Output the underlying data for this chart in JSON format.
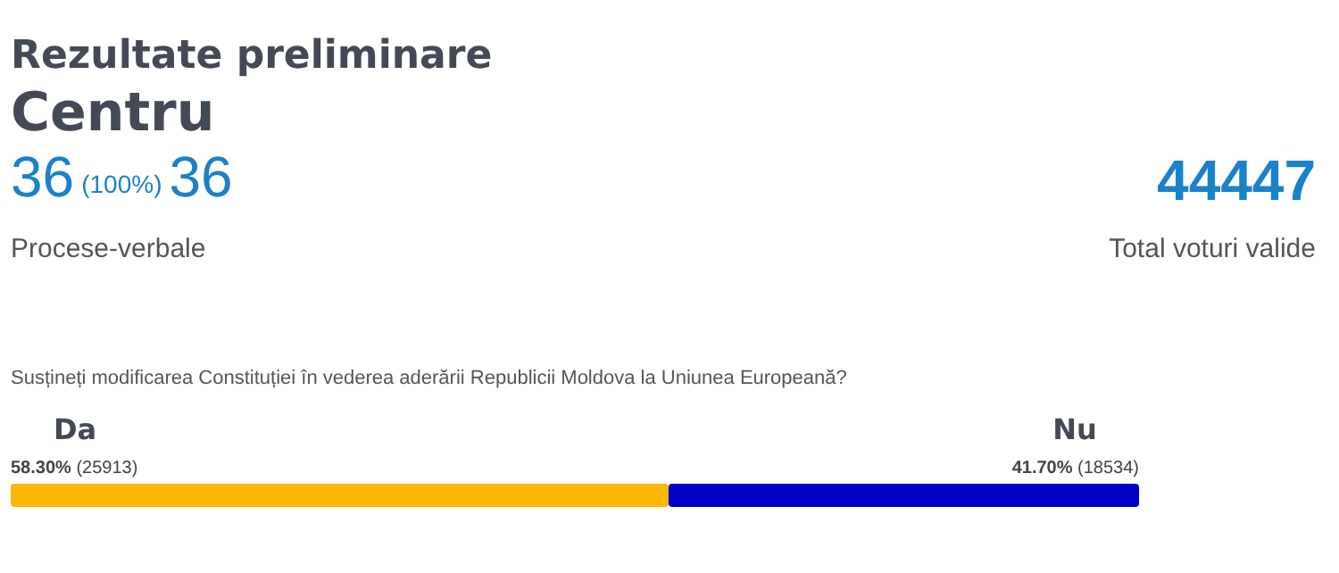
{
  "chart_data": {
    "type": "bar",
    "orientation": "horizontal",
    "stacked": true,
    "title": "Rezultate preliminare",
    "subtitle": "Centru",
    "annotations": [
      "36",
      "(100%)",
      "36",
      "Procese-verbale",
      "44447",
      "Total voturi valide",
      "Susțineți modificarea Constituției în vederea aderării Republicii Moldova la Uniunea Europeană?"
    ],
    "categories": [
      null
    ],
    "series": [
      {
        "name": "Da",
        "color": "#fbb800",
        "values": [
          58.3
        ],
        "value_labels": [
          "58.30% (25913)"
        ]
      },
      {
        "name": "Nu",
        "color": "#0000c8",
        "values": [
          41.7
        ],
        "value_labels": [
          "41.70% (18534)"
        ]
      }
    ],
    "xlim": [
      0,
      100
    ],
    "tick_labels": false,
    "legend": false,
    "grid": false
  }
}
